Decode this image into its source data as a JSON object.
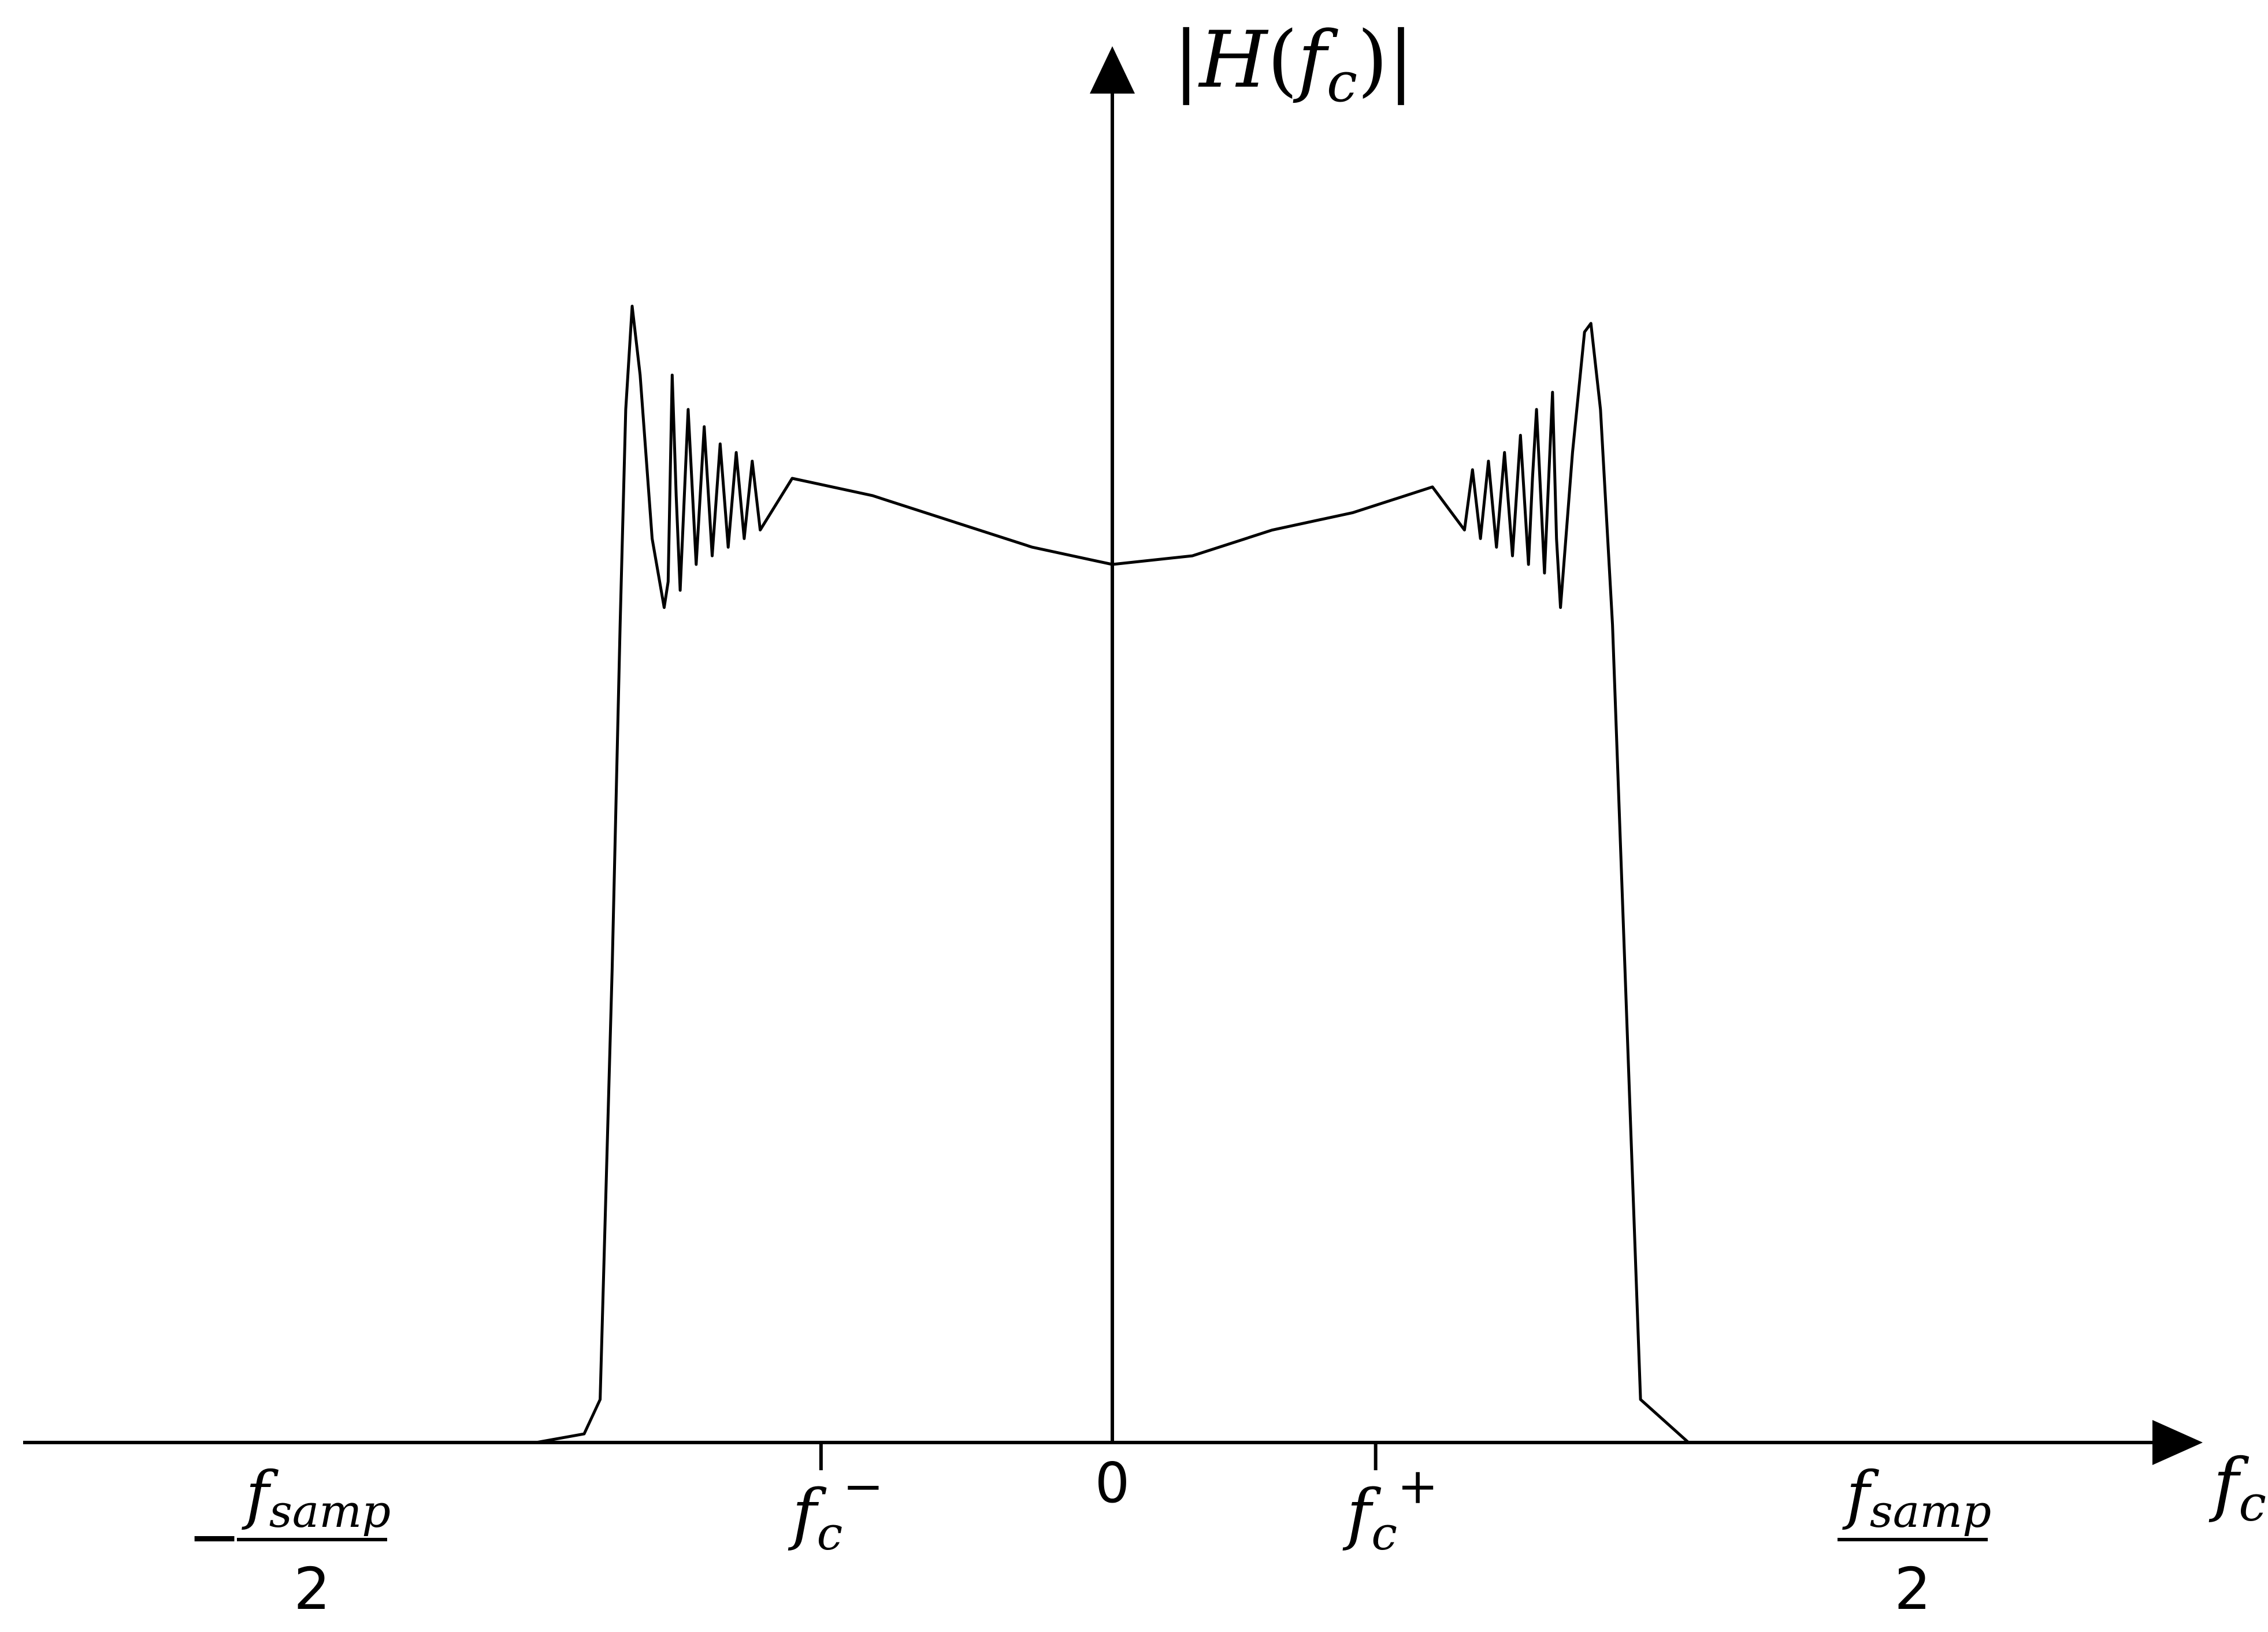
{
  "chart_data": {
    "type": "line",
    "title": "",
    "ylabel": "|H(f_c)|",
    "xlabel": "f_c",
    "xlim": [
      -1,
      1
    ],
    "ylim": [
      0,
      1.32
    ],
    "grid": false,
    "legend": "none",
    "x_tick_labels": [
      {
        "value": -1,
        "sign": "−",
        "numerator": "f",
        "numerator_sub": "samp",
        "denominator": "2"
      },
      {
        "value": -0.364,
        "base": "f",
        "sub": "c",
        "sup": "−"
      },
      {
        "value": 0,
        "text": "0"
      },
      {
        "value": 0.329,
        "base": "f",
        "sub": "c",
        "sup": "+"
      },
      {
        "value": 1,
        "sign": "",
        "numerator": "f",
        "numerator_sub": "samp",
        "denominator": "2"
      }
    ],
    "ylabel_parts": {
      "open": "|",
      "base": "H",
      "paren_open": "(",
      "var": "f",
      "sub": "c",
      "paren_close": ")",
      "close": "|"
    },
    "xlabel_parts": {
      "base": "f",
      "sub": "c"
    },
    "series": [
      {
        "style": "black",
        "x": [
          -1.0,
          -0.72,
          -0.66,
          -0.64,
          -0.625,
          -0.615,
          -0.608,
          -0.6,
          -0.59,
          -0.575,
          -0.56,
          -0.555,
          -0.55,
          -0.545,
          -0.54,
          -0.53,
          -0.52,
          -0.51,
          -0.5,
          -0.49,
          -0.48,
          -0.47,
          -0.46,
          -0.45,
          -0.44,
          -0.4,
          -0.3,
          -0.2,
          -0.1,
          0.0,
          0.1,
          0.2,
          0.3,
          0.4,
          0.44,
          0.45,
          0.46,
          0.47,
          0.48,
          0.49,
          0.5,
          0.51,
          0.52,
          0.525,
          0.53,
          0.54,
          0.55,
          0.555,
          0.56,
          0.575,
          0.59,
          0.598,
          0.61,
          0.625,
          0.66,
          0.72,
          1.0
        ],
        "y": [
          0.0,
          0.0,
          0.01,
          0.05,
          0.55,
          0.95,
          1.2,
          1.32,
          1.24,
          1.05,
          0.97,
          1.0,
          1.24,
          1.1,
          0.99,
          1.2,
          1.02,
          1.18,
          1.03,
          1.16,
          1.04,
          1.15,
          1.05,
          1.14,
          1.06,
          1.12,
          1.1,
          1.07,
          1.04,
          1.02,
          1.03,
          1.06,
          1.08,
          1.11,
          1.06,
          1.13,
          1.05,
          1.14,
          1.04,
          1.15,
          1.03,
          1.17,
          1.02,
          1.12,
          1.2,
          1.01,
          1.22,
          1.05,
          0.97,
          1.15,
          1.29,
          1.3,
          1.2,
          0.95,
          0.05,
          0.0,
          0.0
        ]
      }
    ]
  }
}
